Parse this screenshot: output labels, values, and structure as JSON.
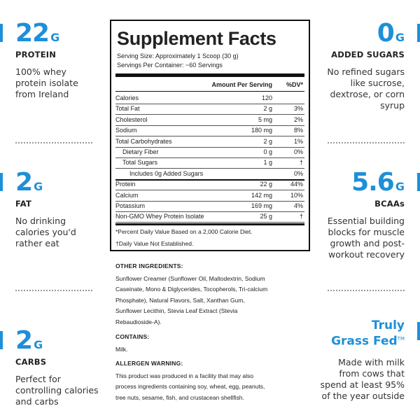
{
  "stats": {
    "protein": {
      "value": "22",
      "unit": "G",
      "label": "PROTEIN",
      "desc": [
        "100% whey",
        "protein isolate",
        "from Ireland"
      ]
    },
    "fat": {
      "value": "2",
      "unit": "G",
      "label": "FAT",
      "desc": [
        "No drinking",
        "calories you'd",
        "rather eat"
      ]
    },
    "carbs": {
      "value": "2",
      "unit": "G",
      "label": "CARBS",
      "desc": [
        "Perfect for",
        "controlling calories",
        "and carbs"
      ]
    },
    "sugars": {
      "value": "0",
      "unit": "G",
      "label": "ADDED SUGARS",
      "desc": [
        "No refined sugars",
        "like sucrose,",
        "dextrose, or corn",
        "syrup"
      ]
    },
    "bcaa": {
      "value": "5.6",
      "unit": "G",
      "label": "BCAAs",
      "desc": [
        "Essential building",
        "blocks for muscle",
        "growth and post-",
        "workout recovery"
      ]
    },
    "grassfed": {
      "title1": "Truly",
      "title2": "Grass Fed",
      "tm": "TM",
      "desc": [
        "Made with milk",
        "from cows that",
        "spend at least 95%",
        "of the year outside"
      ]
    }
  },
  "facts": {
    "title": "Supplement Facts",
    "serving_size": "Serving Size: Approximately 1 Scoop (30 g)",
    "servings": "Servings Per Container: ~60 Servings",
    "header_amount": "Amount Per Serving",
    "header_dv": "%DV*",
    "rows": [
      {
        "name": "Calories",
        "amount": "120",
        "dv": ""
      },
      {
        "name": "Total Fat",
        "amount": "2 g",
        "dv": "3%"
      },
      {
        "name": "Cholesterol",
        "amount": "5 mg",
        "dv": "2%"
      },
      {
        "name": "Sodium",
        "amount": "180 mg",
        "dv": "8%"
      },
      {
        "name": "Total Carbohydrates",
        "amount": "2 g",
        "dv": "1%"
      },
      {
        "name": "Dietary Fiber",
        "amount": "0 g",
        "dv": "0%"
      },
      {
        "name": "Total Sugars",
        "amount": "1 g",
        "dv": "†"
      },
      {
        "name": "Includes 0g Added Sugars",
        "amount": "",
        "dv": "0%"
      },
      {
        "name": "Protein",
        "amount": "22 g",
        "dv": "44%"
      },
      {
        "name": "Calcium",
        "amount": "142 mg",
        "dv": "10%"
      },
      {
        "name": "Potassium",
        "amount": "169 mg",
        "dv": "4%"
      },
      {
        "name": "Non-GMO Whey Protein Isolate",
        "amount": "25 g",
        "dv": "†"
      }
    ],
    "note1": "*Percent Daily Value Based on a 2,000 Calorie Diet.",
    "note2": "†Daily Value Not Established."
  },
  "ingredients": {
    "other_title": "OTHER INGREDIENTS:",
    "other_lines": [
      "Sunflower Creamer (Sunflower Oil, Maltodextrin, Sodium",
      "Caseinate, Mono & Diglycerides, Tocopherols, Tri-calcium",
      "Phosphate), Natural Flavors, Salt, Xanthan Gum,",
      "Sunflower Lecithin, Stevia Leaf Extract (Stevia",
      "Rebaudioside-A)."
    ],
    "contains_title": "CONTAINS:",
    "contains": "Milk.",
    "allergen_title": "ALLERGEN WARNING:",
    "allergen_lines": [
      "This product was produced in a facility that may also",
      "process ingredients containing soy, wheat, egg, peanuts,",
      "tree nuts, sesame, fish, and crustacean shellfish."
    ]
  },
  "colors": {
    "accent": "#1e8fd8",
    "text": "#222222"
  }
}
